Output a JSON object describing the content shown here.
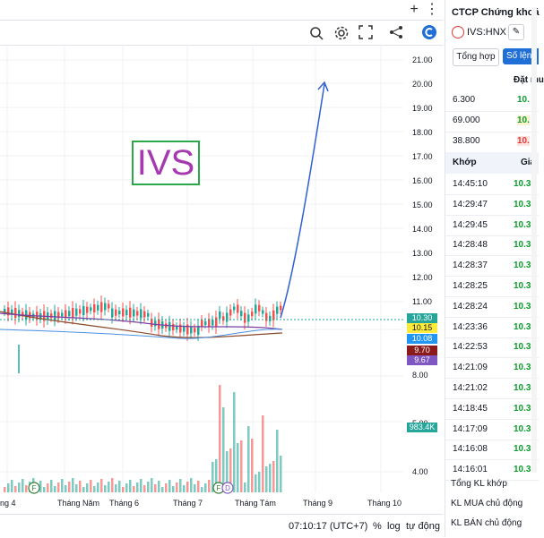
{
  "toolbar": {
    "add_icon": "plus-icon",
    "menu_icon": "kebab-icon"
  },
  "chart": {
    "annotation": "IVS",
    "y_ticks": [
      "21.00",
      "20.00",
      "19.00",
      "18.00",
      "17.00",
      "16.00",
      "15.00",
      "14.00",
      "13.00",
      "12.00",
      "11.00",
      "8.00",
      "5.00",
      "4.00"
    ],
    "x_ticks": [
      "ng 4",
      "Tháng Năm",
      "Tháng 6",
      "Tháng 7",
      "Tháng Tám",
      "Tháng 9",
      "Tháng 10"
    ],
    "price_tags": [
      {
        "value": "10.30",
        "bg": "#26a69a",
        "fg": "#ffffff"
      },
      {
        "value": "10.15",
        "bg": "#ffeb3b",
        "fg": "#131722"
      },
      {
        "value": "10.08",
        "bg": "#2196f3",
        "fg": "#ffffff"
      },
      {
        "value": "9.70",
        "bg": "#8b1a1a",
        "fg": "#ffffff"
      },
      {
        "value": "9.67",
        "bg": "#7e57c2",
        "fg": "#ffffff"
      }
    ],
    "volume_tag": {
      "value": "983.4K",
      "bg": "#26a69a",
      "fg": "#ffffff"
    },
    "event_markers": [
      "F",
      "F",
      "D"
    ],
    "colors": {
      "up": "#26a69a",
      "down": "#ef5350",
      "arrow": "#2f5fd6",
      "ma1": "#7b3fa0",
      "ma2": "#8b4a2a",
      "ma3": "#4a90e2"
    }
  },
  "status": {
    "time": "07:10:17 (UTC+7)",
    "percent": "%",
    "log": "log",
    "auto": "tự động"
  },
  "panel": {
    "title": "CTCP Chứng khoá",
    "symbol": "IVS:HNX",
    "tab_summary": "Tổng hợp",
    "tab_volume": "Số lện",
    "order_header": "Đặt mu",
    "orders": [
      {
        "qty": "6.300",
        "price": "10."
      },
      {
        "qty": "69.000",
        "price": "10."
      },
      {
        "qty": "38.800",
        "price": "10."
      }
    ],
    "match_header": "Khớp",
    "price_header": "Giá",
    "matches": [
      {
        "time": "14:45:10",
        "price": "10.30"
      },
      {
        "time": "14:29:47",
        "price": "10.30"
      },
      {
        "time": "14:29:45",
        "price": "10.30"
      },
      {
        "time": "14:28:48",
        "price": "10.30"
      },
      {
        "time": "14:28:37",
        "price": "10.30"
      },
      {
        "time": "14:28:25",
        "price": "10.30"
      },
      {
        "time": "14:28:24",
        "price": "10.30"
      },
      {
        "time": "14:23:36",
        "price": "10.30"
      },
      {
        "time": "14:22:53",
        "price": "10.30"
      },
      {
        "time": "14:21:09",
        "price": "10.30"
      },
      {
        "time": "14:21:02",
        "price": "10.30"
      },
      {
        "time": "14:18:45",
        "price": "10.30"
      },
      {
        "time": "14:17:09",
        "price": "10.30"
      },
      {
        "time": "14:16:08",
        "price": "10.30"
      },
      {
        "time": "14:16:01",
        "price": "10.30"
      }
    ],
    "footer": [
      "Tổng KL khớp",
      "KL MUA chủ động",
      "KL BÁN chủ động"
    ]
  }
}
